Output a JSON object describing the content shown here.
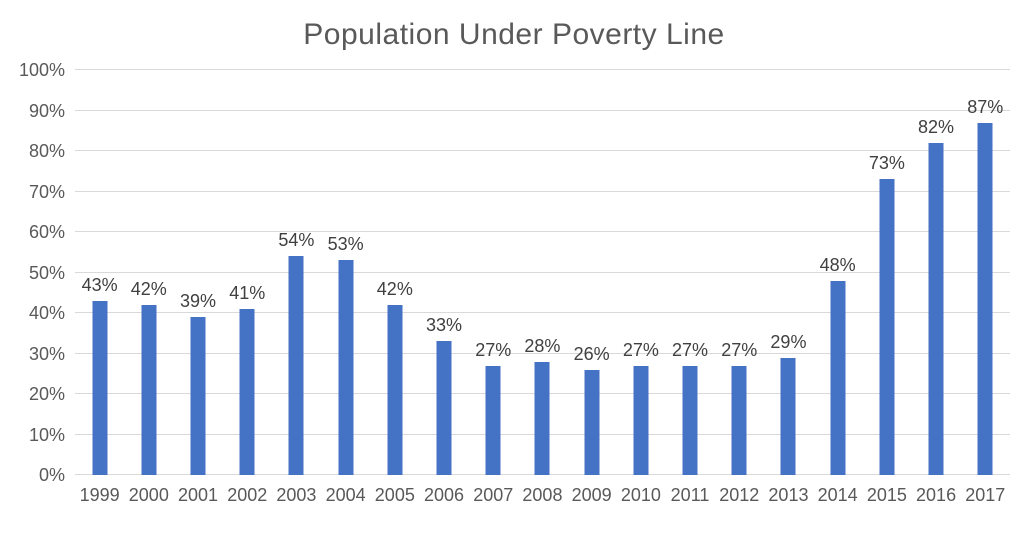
{
  "chart_data": {
    "type": "bar",
    "title": "Population Under Poverty Line",
    "categories": [
      "1999",
      "2000",
      "2001",
      "2002",
      "2003",
      "2004",
      "2005",
      "2006",
      "2007",
      "2008",
      "2009",
      "2010",
      "2011",
      "2012",
      "2013",
      "2014",
      "2015",
      "2016",
      "2017"
    ],
    "values": [
      43,
      42,
      39,
      41,
      54,
      53,
      42,
      33,
      27,
      28,
      26,
      27,
      27,
      27,
      29,
      48,
      73,
      82,
      87
    ],
    "data_labels": [
      "43%",
      "42%",
      "39%",
      "41%",
      "54%",
      "53%",
      "42%",
      "33%",
      "27%",
      "28%",
      "26%",
      "27%",
      "27%",
      "27%",
      "29%",
      "48%",
      "73%",
      "82%",
      "87%"
    ],
    "xlabel": "",
    "ylabel": "",
    "ylim": [
      0,
      100
    ],
    "y_tick_step": 10,
    "y_tick_labels": [
      "0%",
      "10%",
      "20%",
      "30%",
      "40%",
      "50%",
      "60%",
      "70%",
      "80%",
      "90%",
      "100%"
    ],
    "grid": true,
    "legend": "none",
    "colors": {
      "bar": "#4472c4",
      "gridline": "#d9d9d9",
      "title_text": "#595959",
      "axis_text": "#595959",
      "data_label_text": "#404040",
      "background": "#ffffff"
    }
  }
}
